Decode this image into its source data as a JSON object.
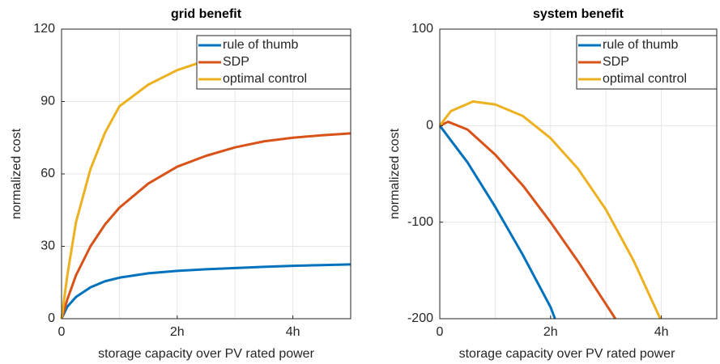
{
  "chart_data": [
    {
      "type": "line",
      "title": "grid benefit",
      "xlabel": "storage capacity over PV rated power",
      "ylabel": "normalized cost",
      "xlim": [
        0,
        5
      ],
      "ylim": [
        0,
        120
      ],
      "xticks": [
        0,
        {
          "value": 2,
          "label": "2h"
        },
        {
          "value": 4,
          "label": "4h"
        }
      ],
      "xgrid": [
        1,
        2,
        3,
        4
      ],
      "yticks": [
        0,
        30,
        60,
        90,
        120
      ],
      "grid": true,
      "legend": "upper right",
      "series": [
        {
          "name": "rule of thumb",
          "color": "#0072bd",
          "x": [
            0,
            0.1,
            0.25,
            0.5,
            0.75,
            1,
            1.5,
            2,
            2.5,
            3,
            3.5,
            4,
            4.5,
            5
          ],
          "values": [
            0,
            5,
            9,
            13,
            15.5,
            17,
            18.8,
            19.8,
            20.5,
            21,
            21.5,
            21.9,
            22.2,
            22.5
          ]
        },
        {
          "name": "SDP",
          "color": "#d95319",
          "x": [
            0,
            0.1,
            0.25,
            0.5,
            0.75,
            1,
            1.5,
            2,
            2.5,
            3,
            3.5,
            4,
            4.5,
            5
          ],
          "values": [
            0,
            8,
            18,
            30,
            39,
            46,
            56,
            63,
            67.5,
            71,
            73.5,
            75,
            76,
            76.8
          ]
        },
        {
          "name": "optimal control",
          "color": "#edb120",
          "x": [
            0,
            0.1,
            0.25,
            0.5,
            0.75,
            1,
            1.5,
            2,
            2.5,
            3,
            3.5,
            4,
            4.5,
            5
          ],
          "values": [
            0,
            18,
            40,
            62,
            77,
            88,
            97,
            103,
            107,
            110,
            111.5,
            112.5,
            113,
            113.2
          ]
        }
      ]
    },
    {
      "type": "line",
      "title": "system benefit",
      "xlabel": "storage capacity over PV rated power",
      "ylabel": "normalized cost",
      "xlim": [
        0,
        5
      ],
      "ylim": [
        -200,
        100
      ],
      "xticks": [
        0,
        {
          "value": 2,
          "label": "2h"
        },
        {
          "value": 4,
          "label": "4h"
        }
      ],
      "xgrid": [
        1,
        2,
        3,
        4
      ],
      "yticks": [
        -200,
        -100,
        0,
        100
      ],
      "grid": true,
      "legend": "upper right",
      "series": [
        {
          "name": "rule of thumb",
          "color": "#0072bd",
          "x": [
            0,
            0.5,
            1,
            1.5,
            2,
            2.08
          ],
          "values": [
            0,
            -38,
            -84,
            -134,
            -188,
            -200
          ]
        },
        {
          "name": "SDP",
          "color": "#d95319",
          "x": [
            0,
            0.15,
            0.5,
            1,
            1.5,
            2,
            2.5,
            3,
            3.17
          ],
          "values": [
            0,
            4,
            -4,
            -30,
            -62,
            -100,
            -141,
            -185,
            -200
          ]
        },
        {
          "name": "optimal control",
          "color": "#edb120",
          "x": [
            0,
            0.2,
            0.6,
            1,
            1.5,
            2,
            2.5,
            3,
            3.5,
            3.98
          ],
          "values": [
            0,
            15,
            25,
            22,
            10,
            -13,
            -45,
            -87,
            -140,
            -200
          ]
        }
      ]
    }
  ]
}
